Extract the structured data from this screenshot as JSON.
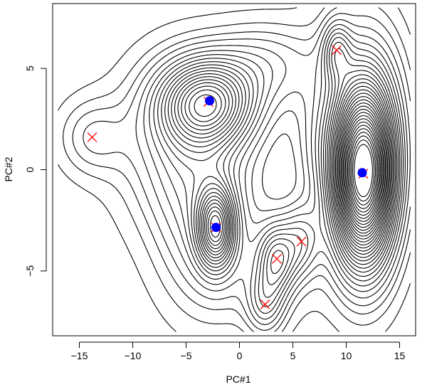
{
  "chart_data": {
    "type": "scatter",
    "title": "",
    "xlabel": "PC#1",
    "ylabel": "PC#2",
    "xlim": [
      -17.5,
      16.5
    ],
    "ylim": [
      -8.2,
      8.2
    ],
    "x_ticks": [
      -15,
      -10,
      -5,
      0,
      5,
      10,
      15
    ],
    "y_ticks": [
      -5,
      0,
      5
    ],
    "series": [
      {
        "marker": "x",
        "color": "#ff0000",
        "points": [
          {
            "x": -13.8,
            "y": 1.6
          },
          {
            "x": -2.9,
            "y": 3.35
          },
          {
            "x": -2.2,
            "y": -2.85
          },
          {
            "x": 11.6,
            "y": -0.2
          },
          {
            "x": 9.1,
            "y": 5.9
          },
          {
            "x": 3.5,
            "y": -4.4
          },
          {
            "x": 5.8,
            "y": -3.55
          },
          {
            "x": 2.4,
            "y": -6.65
          }
        ]
      },
      {
        "marker": "filled-circle",
        "color": "#0000ff",
        "points": [
          {
            "x": -2.8,
            "y": 3.4
          },
          {
            "x": -2.2,
            "y": -2.85
          },
          {
            "x": 11.5,
            "y": -0.15
          }
        ]
      }
    ],
    "density_contours": {
      "color": "#000000",
      "bumps": [
        {
          "x": -3.0,
          "y": 3.3,
          "sx": 3.0,
          "sy": 1.45,
          "h": 1.05
        },
        {
          "x": -5.5,
          "y": 1.2,
          "sx": 4.0,
          "sy": 2.8,
          "h": 0.35
        },
        {
          "x": 2.5,
          "y": 5.2,
          "sx": 3.4,
          "sy": 1.4,
          "h": 0.28
        },
        {
          "x": -2.2,
          "y": -2.85,
          "sx": 1.2,
          "sy": 1.35,
          "h": 0.95
        },
        {
          "x": -3.5,
          "y": -2.5,
          "sx": 3.0,
          "sy": 3.0,
          "h": 0.28
        },
        {
          "x": 11.6,
          "y": -0.2,
          "sx": 2.0,
          "sy": 3.0,
          "h": 2.3
        },
        {
          "x": 12.0,
          "y": 3.5,
          "sx": 3.5,
          "sy": 4.0,
          "h": 0.25
        },
        {
          "x": 9.1,
          "y": 5.9,
          "sx": 0.9,
          "sy": 1.0,
          "h": 0.4
        },
        {
          "x": 3.5,
          "y": -4.4,
          "sx": 1.2,
          "sy": 1.2,
          "h": 0.55
        },
        {
          "x": 5.8,
          "y": -3.55,
          "sx": 1.2,
          "sy": 1.2,
          "h": 0.35
        },
        {
          "x": 2.4,
          "y": -6.6,
          "sx": 1.2,
          "sy": 1.1,
          "h": 0.35
        },
        {
          "x": -13.8,
          "y": 1.6,
          "sx": 2.2,
          "sy": 1.3,
          "h": 0.22
        },
        {
          "x": 1.0,
          "y": -5.0,
          "sx": 4.0,
          "sy": 2.0,
          "h": 0.15
        },
        {
          "x": 7.0,
          "y": 1.5,
          "sx": 1.5,
          "sy": 2.0,
          "h": 0.12
        }
      ],
      "levels": [
        0.05,
        0.11,
        0.17,
        0.23,
        0.3,
        0.37,
        0.44,
        0.51,
        0.58,
        0.65,
        0.72,
        0.79,
        0.86,
        0.93,
        1.0,
        1.07,
        1.14,
        1.21,
        1.28,
        1.35,
        1.42,
        1.49,
        1.56,
        1.63,
        1.7,
        1.77,
        1.84,
        1.91,
        1.98,
        2.05,
        2.12,
        2.19,
        2.26
      ]
    }
  }
}
